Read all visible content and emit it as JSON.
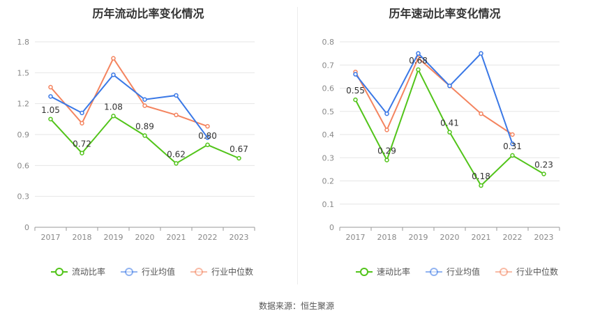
{
  "source_text": "数据来源：恒生聚源",
  "chart_data": [
    {
      "type": "line",
      "title": "历年流动比率变化情况",
      "categories": [
        "2017",
        "2018",
        "2019",
        "2020",
        "2021",
        "2022",
        "2023"
      ],
      "ylim": [
        0,
        1.8
      ],
      "yticks": [
        "0",
        "0.3",
        "0.6",
        "0.9",
        "1.2",
        "1.5",
        "1.8"
      ],
      "grid": true,
      "legend": "bottom",
      "series": [
        {
          "name": "流动比率",
          "color": "#52c41a",
          "values": [
            1.05,
            0.72,
            1.08,
            0.89,
            0.62,
            0.8,
            0.67
          ],
          "labels": [
            "1.05",
            "0.72",
            "1.08",
            "0.89",
            "0.62",
            "0.80",
            "0.67"
          ]
        },
        {
          "name": "行业均值",
          "color": "#3a78e6",
          "values": [
            1.27,
            1.11,
            1.48,
            1.24,
            1.28,
            0.87,
            null
          ]
        },
        {
          "name": "行业中位数",
          "color": "#f4845f",
          "values": [
            1.36,
            1.01,
            1.64,
            1.18,
            1.09,
            0.98,
            null
          ]
        }
      ]
    },
    {
      "type": "line",
      "title": "历年速动比率变化情况",
      "categories": [
        "2017",
        "2018",
        "2019",
        "2020",
        "2021",
        "2022",
        "2023"
      ],
      "ylim": [
        0,
        0.8
      ],
      "yticks": [
        "0",
        "0.1",
        "0.2",
        "0.3",
        "0.4",
        "0.5",
        "0.6",
        "0.7",
        "0.8"
      ],
      "grid": true,
      "legend": "bottom",
      "series": [
        {
          "name": "速动比率",
          "color": "#52c41a",
          "values": [
            0.55,
            0.29,
            0.68,
            0.41,
            0.18,
            0.31,
            0.23
          ],
          "labels": [
            "0.55",
            "0.29",
            "0.68",
            "0.41",
            "0.18",
            "0.31",
            "0.23"
          ]
        },
        {
          "name": "行业均值",
          "color": "#3a78e6",
          "values": [
            0.66,
            0.49,
            0.75,
            0.61,
            0.75,
            0.36,
            null
          ]
        },
        {
          "name": "行业中位数",
          "color": "#f4845f",
          "values": [
            0.67,
            0.42,
            0.73,
            0.61,
            0.49,
            0.4,
            null
          ]
        }
      ]
    }
  ]
}
